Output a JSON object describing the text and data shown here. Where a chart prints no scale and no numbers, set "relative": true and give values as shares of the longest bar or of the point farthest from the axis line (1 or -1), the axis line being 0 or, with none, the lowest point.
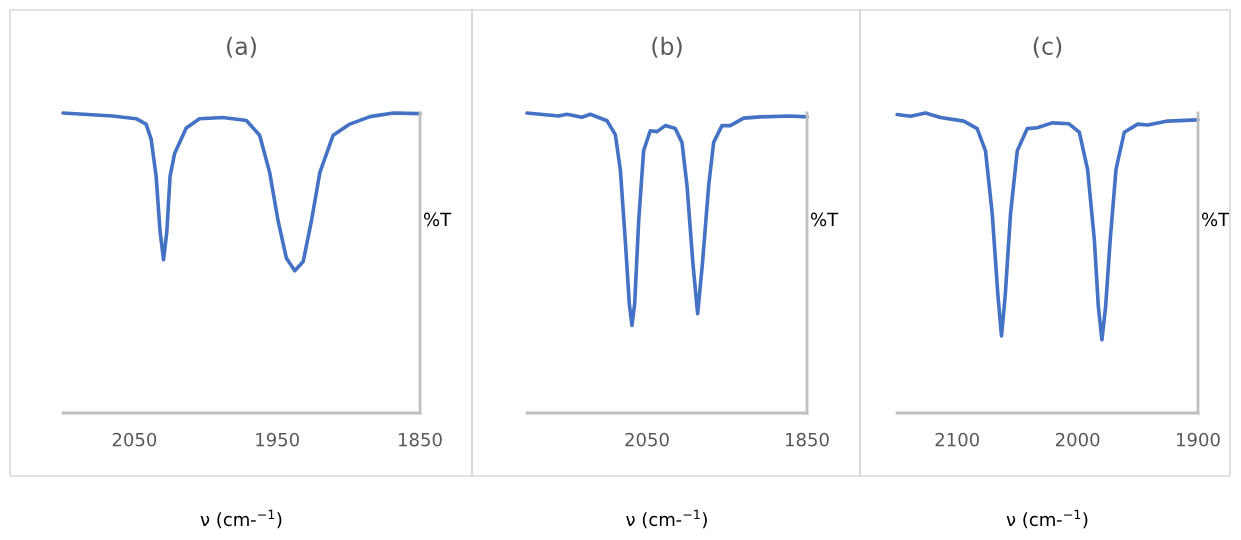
{
  "chart_data": [
    {
      "type": "line",
      "title": "(a)",
      "xlabel": "ν (cm-$^{−1}$)",
      "ylabel": "%T",
      "relative": true,
      "tick_labels": "x",
      "xlim": [
        2100,
        1850
      ],
      "xticks": [
        2050,
        1950,
        1850
      ],
      "x": [
        2100,
        2065.2,
        2048.8,
        2041.8,
        2038.3,
        2034.8,
        2032.0,
        2029.6,
        2027.3,
        2025.0,
        2021.9,
        2013.7,
        2004.4,
        1988.0,
        1971.6,
        1962.3,
        1955.3,
        1949.4,
        1943.6,
        1937.7,
        1931.8,
        1926.0,
        1920.1,
        1910.8,
        1899.1,
        1885.0,
        1868.7,
        1850
      ],
      "series": [
        {
          "color": "#4472c4",
          "values": [
            1.0,
            0.99,
            0.981,
            0.963,
            0.913,
            0.79,
            0.604,
            0.511,
            0.604,
            0.79,
            0.864,
            0.95,
            0.981,
            0.985,
            0.975,
            0.926,
            0.802,
            0.641,
            0.517,
            0.474,
            0.505,
            0.641,
            0.802,
            0.926,
            0.963,
            0.988,
            1.0,
            0.998
          ]
        }
      ]
    },
    {
      "type": "line",
      "title": "(b)",
      "xlabel": "ν (cm-$^{−1}$)",
      "ylabel": "%T",
      "relative": true,
      "tick_labels": "x",
      "xlim": [
        2200,
        1850
      ],
      "xticks": [
        2050,
        1850
      ],
      "x": [
        2200,
        2160.4,
        2150,
        2131.3,
        2120.8,
        2100,
        2089.6,
        2083.3,
        2077.1,
        2072.1,
        2068.8,
        2065.4,
        2060.4,
        2054.2,
        2045.8,
        2037.5,
        2027.1,
        2014.6,
        2006.3,
        2000,
        1992.5,
        1986.7,
        1980.8,
        1972.9,
        1966.7,
        1956.3,
        1945.8,
        1929.2,
        1908.3,
        1870.8,
        1850
      ],
      "series": [
        {
          "color": "#4472c4",
          "values": [
            1.0,
            0.99,
            0.996,
            0.986,
            0.996,
            0.974,
            0.928,
            0.81,
            0.574,
            0.364,
            0.292,
            0.364,
            0.64,
            0.875,
            0.941,
            0.938,
            0.958,
            0.948,
            0.902,
            0.758,
            0.495,
            0.331,
            0.495,
            0.758,
            0.902,
            0.958,
            0.958,
            0.983,
            0.987,
            0.99,
            0.987
          ]
        }
      ]
    },
    {
      "type": "line",
      "title": "(c)",
      "xlabel": "ν (cm-$^{−1}$)",
      "ylabel": "%T",
      "relative": true,
      "tick_labels": "x",
      "xlim": [
        2150,
        1900
      ],
      "xticks": [
        2100,
        2000,
        1900
      ],
      "x": [
        2149.9,
        2138.8,
        2126.3,
        2113.9,
        2094.5,
        2083.4,
        2076.5,
        2070.9,
        2066.2,
        2063.2,
        2060.1,
        2055.7,
        2050.1,
        2041.8,
        2033.5,
        2021.1,
        2007.2,
        1998.6,
        1991.7,
        1986.1,
        1982.8,
        1979.8,
        1976.7,
        1972.9,
        1968.1,
        1961.2,
        1950.1,
        1941.8,
        1925.2,
        1900
      ],
      "series": [
        {
          "color": "#4472c4",
          "values": [
            0.995,
            0.989,
            1.0,
            0.985,
            0.973,
            0.948,
            0.874,
            0.664,
            0.393,
            0.257,
            0.393,
            0.664,
            0.874,
            0.948,
            0.951,
            0.967,
            0.964,
            0.936,
            0.812,
            0.578,
            0.356,
            0.244,
            0.356,
            0.578,
            0.812,
            0.936,
            0.963,
            0.96,
            0.973,
            0.977
          ]
        }
      ]
    }
  ]
}
